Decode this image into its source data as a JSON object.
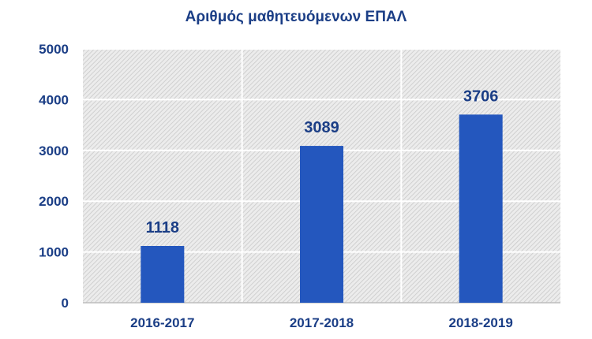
{
  "chart_data": {
    "type": "bar",
    "title": "Αριθμός μαθητευόμενων ΕΠΑΛ",
    "categories": [
      "2016-2017",
      "2017-2018",
      "2018-2019"
    ],
    "values": [
      1118,
      3089,
      3706
    ],
    "data_labels": [
      "1118",
      "3089",
      "3706"
    ],
    "yticks": [
      "0",
      "1000",
      "2000",
      "3000",
      "4000",
      "5000"
    ],
    "ytick_values": [
      0,
      1000,
      2000,
      3000,
      4000,
      5000
    ],
    "ylim": [
      0,
      5000
    ],
    "xlabel": "",
    "ylabel": "",
    "grid": true,
    "legend": "none",
    "colors": {
      "bar": "#2457be",
      "text": "#1b3e86",
      "plot_bg": "#ececec",
      "hatch": "#c9c9c9",
      "grid": "#ffffff",
      "axis": "#bdbdbd"
    }
  }
}
